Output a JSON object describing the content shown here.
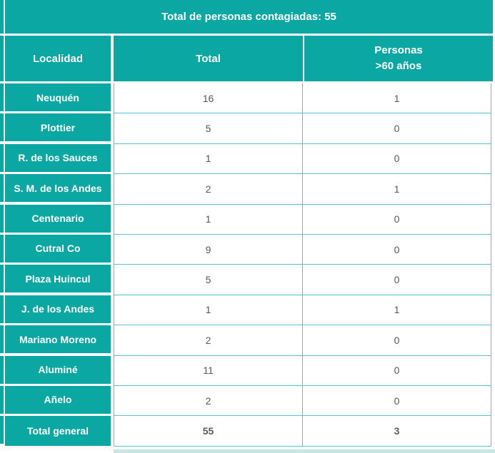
{
  "table": {
    "title": "Total de personas contagiadas: 55",
    "header": {
      "localidad": "Localidad",
      "total": "Total",
      "personas": "Personas\n>60 años"
    }
  },
  "colors": {
    "teal": "#0ba7a3",
    "gridline_teal": "#54c6cf",
    "pale_teal_strip": "#c9e6e6",
    "number_gray": "#595959",
    "header_text": "#ffffff"
  },
  "chart_data": {
    "type": "table",
    "title": "Total de personas contagiadas: 55",
    "columns": [
      "Localidad",
      "Total",
      "Personas >60 años"
    ],
    "rows": [
      {
        "localidad": "Neuquén",
        "total": "16",
        "personas_60": "1"
      },
      {
        "localidad": "Plottier",
        "total": "5",
        "personas_60": "0"
      },
      {
        "localidad": "R. de los Sauces",
        "total": "1",
        "personas_60": "0"
      },
      {
        "localidad": "S. M. de los Andes",
        "total": "2",
        "personas_60": "1"
      },
      {
        "localidad": "Centenario",
        "total": "1",
        "personas_60": "0"
      },
      {
        "localidad": "Cutral Co",
        "total": "9",
        "personas_60": "0"
      },
      {
        "localidad": "Plaza Huincul",
        "total": "5",
        "personas_60": "0"
      },
      {
        "localidad": "J. de los Andes",
        "total": "1",
        "personas_60": "1"
      },
      {
        "localidad": "Mariano Moreno",
        "total": "2",
        "personas_60": "0"
      },
      {
        "localidad": "Aluminé",
        "total": "11",
        "personas_60": "0"
      },
      {
        "localidad": "Añelo",
        "total": "2",
        "personas_60": "0"
      }
    ],
    "total_row": {
      "localidad": "Total general",
      "total": "55",
      "personas_60": "3"
    }
  }
}
